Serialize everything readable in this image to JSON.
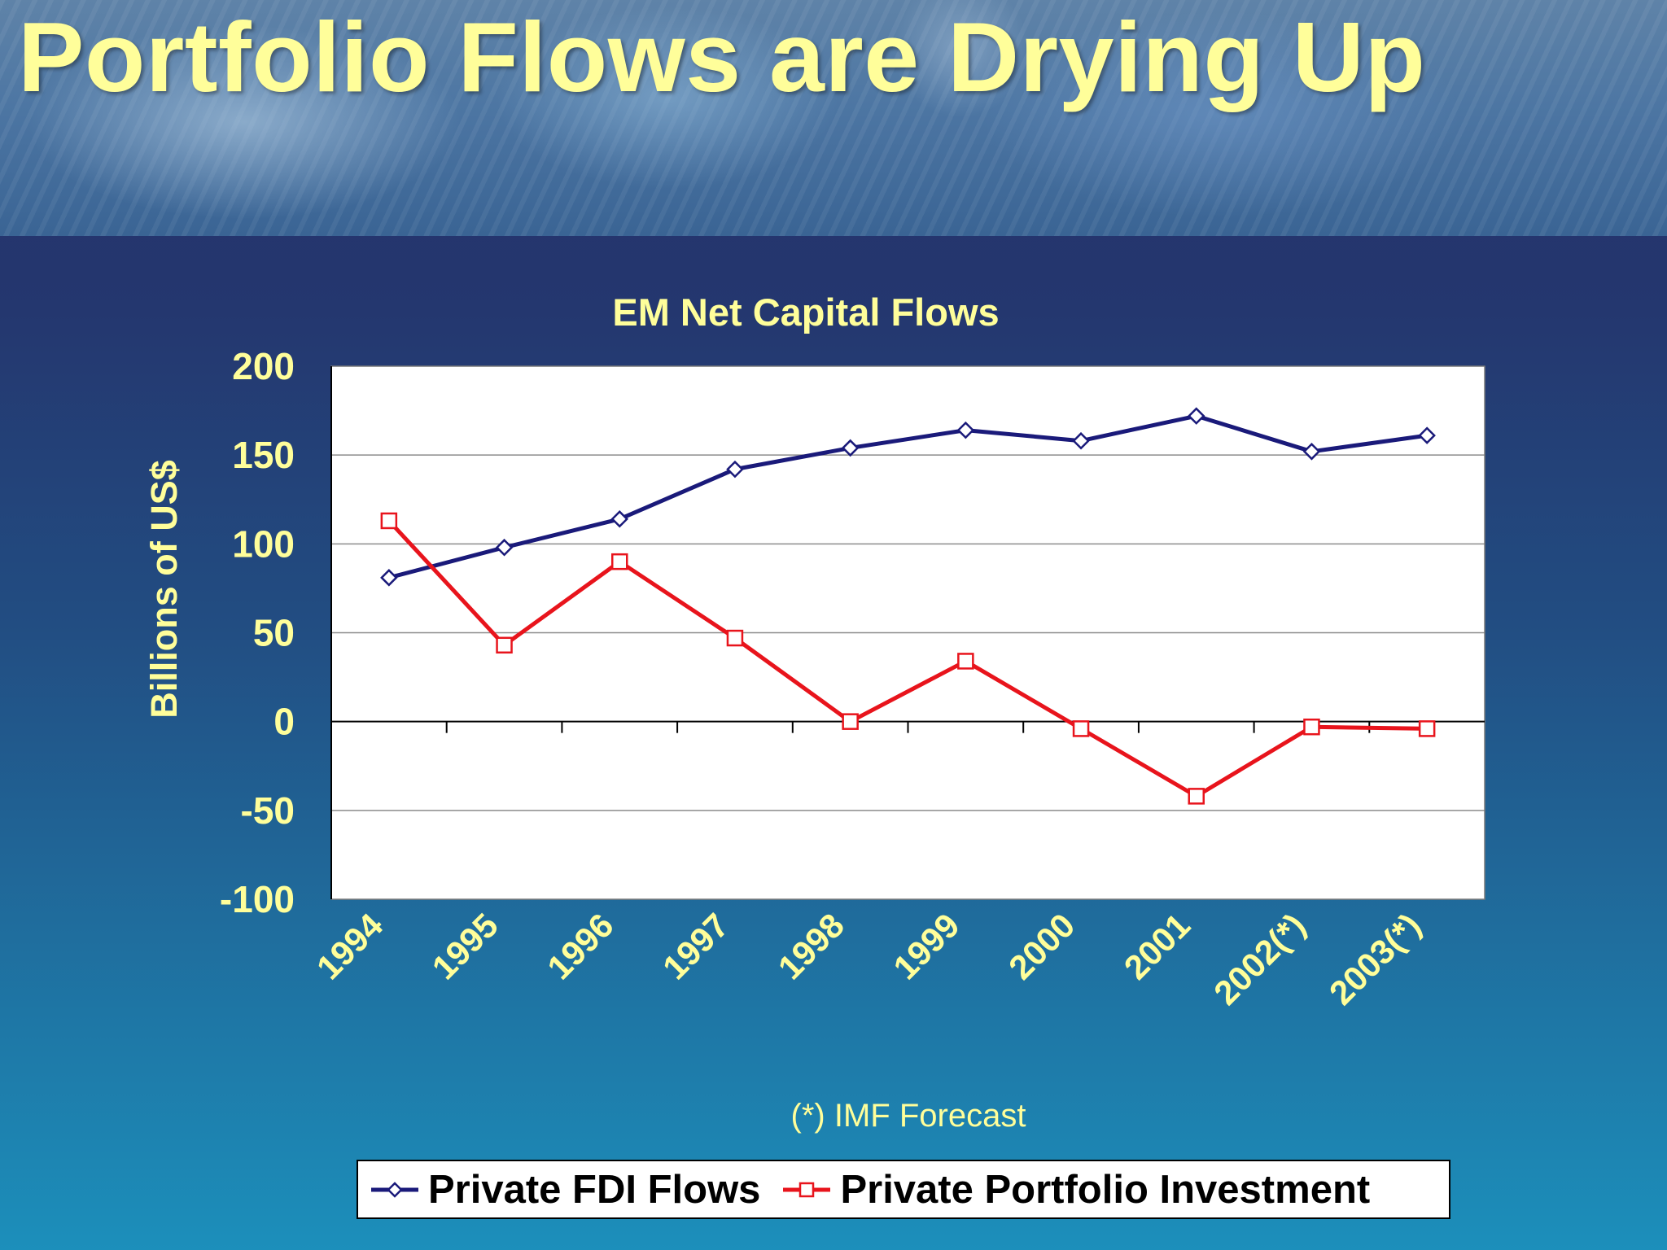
{
  "slide": {
    "title": "Portfolio Flows are Drying Up",
    "footnote": "(*) IMF Forecast"
  },
  "colors": {
    "title_text": "#fffe9a",
    "fdi_series": "#1a1a7a",
    "portfolio_series": "#e8141c",
    "plot_background": "#ffffff"
  },
  "chart_data": {
    "type": "line",
    "title": "EM Net Capital Flows",
    "xlabel": "",
    "ylabel": "Billions of US$",
    "ylim": [
      -100,
      200
    ],
    "yticks": [
      200,
      150,
      100,
      50,
      0,
      -50,
      -100
    ],
    "categories": [
      "1994",
      "1995",
      "1996",
      "1997",
      "1998",
      "1999",
      "2000",
      "2001",
      "2002(*)",
      "2003(*)"
    ],
    "grid": true,
    "legend_position": "bottom",
    "series": [
      {
        "name": "Private FDI Flows",
        "marker": "diamond",
        "values": [
          81,
          98,
          114,
          142,
          154,
          164,
          158,
          172,
          152,
          161
        ]
      },
      {
        "name": "Private Portfolio Investment",
        "marker": "square",
        "values": [
          113,
          43,
          90,
          47,
          0,
          34,
          -4,
          -42,
          -3,
          -4
        ]
      }
    ]
  }
}
